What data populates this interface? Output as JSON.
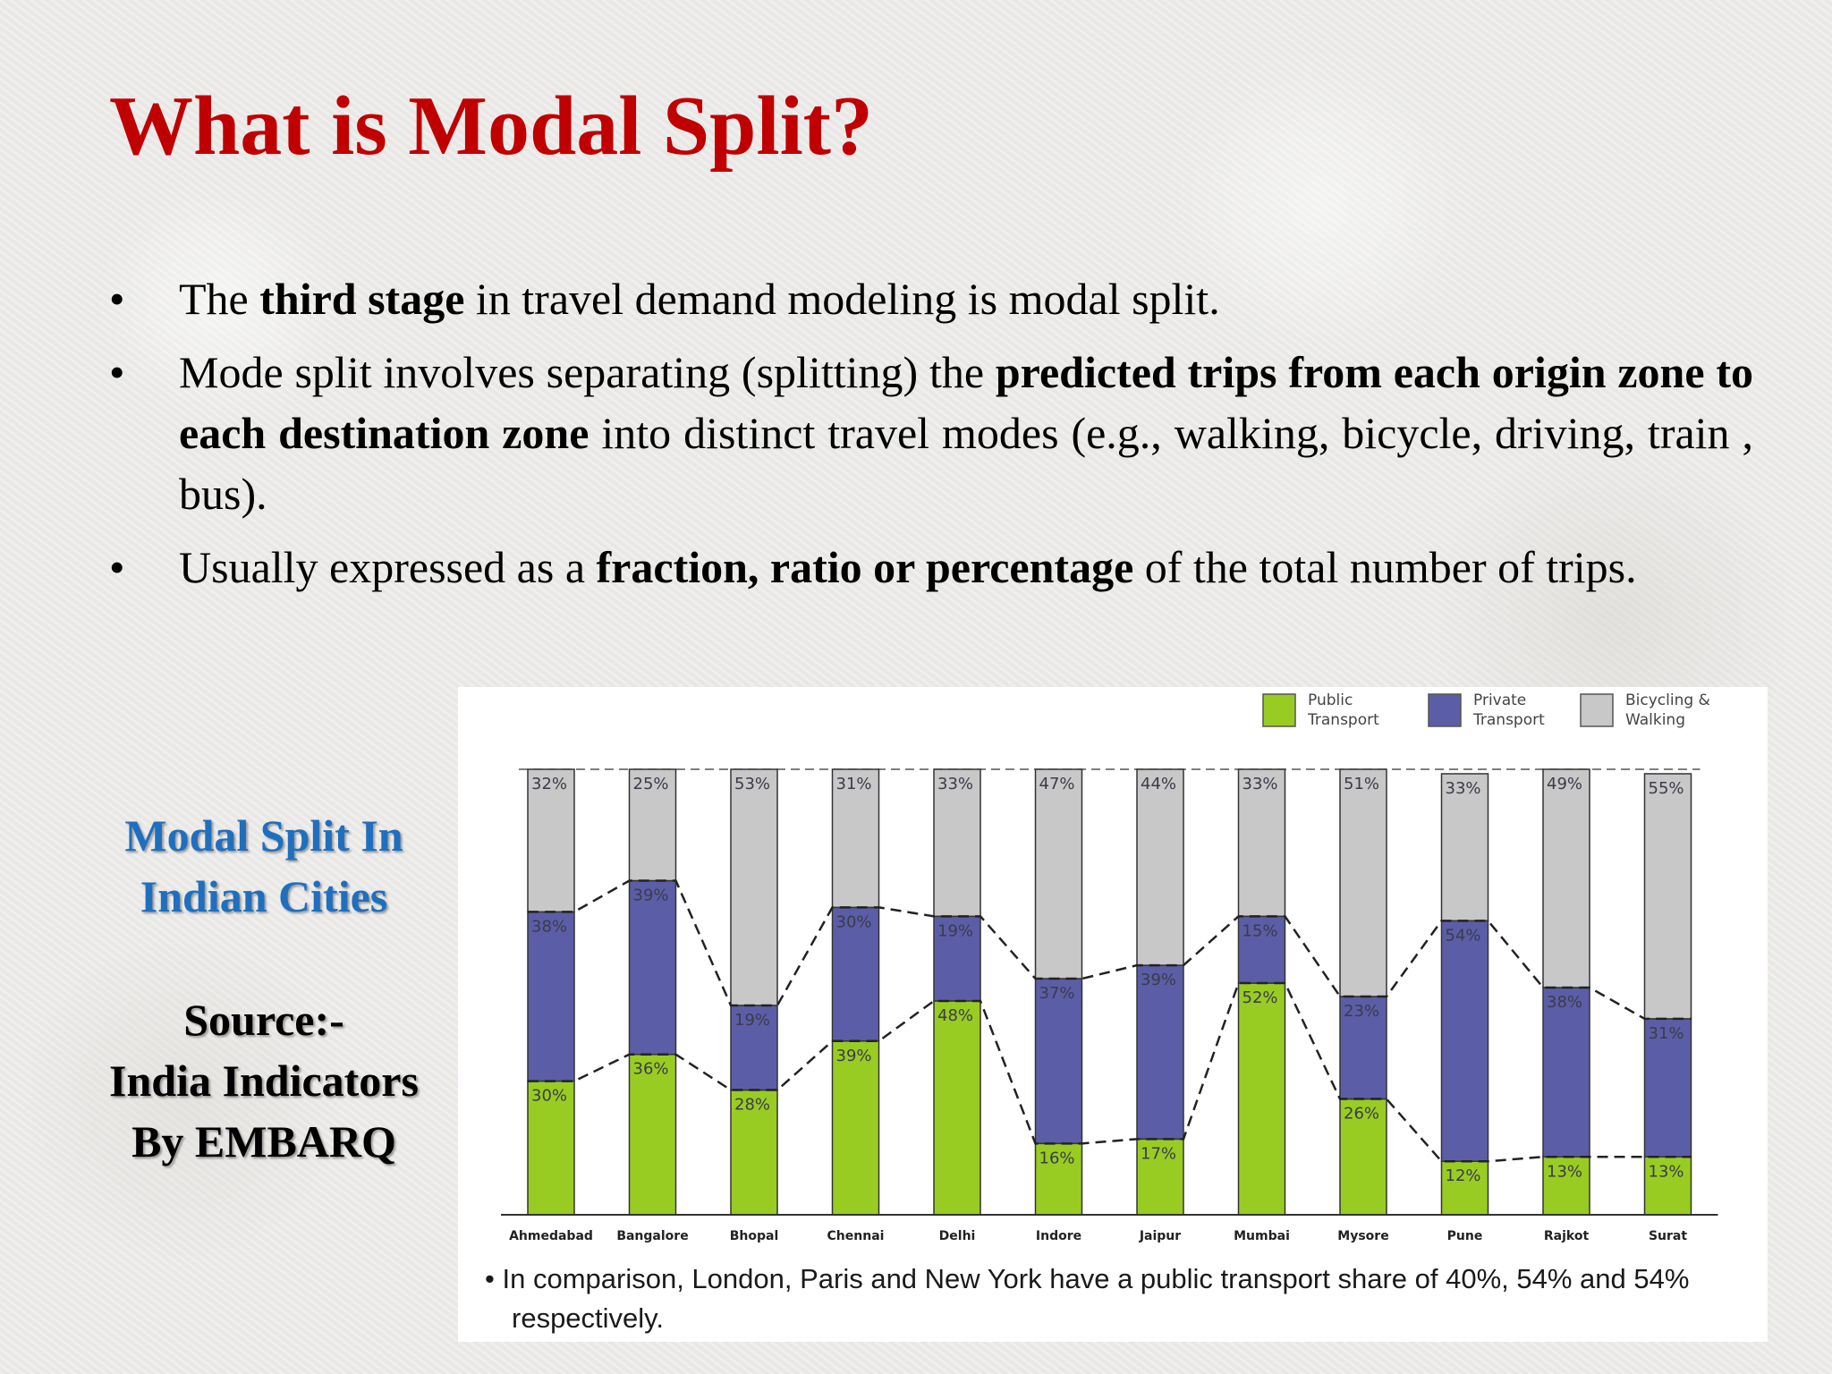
{
  "slide": {
    "title": "What is Modal Split?",
    "bullets": [
      {
        "segments": [
          {
            "text": "The ",
            "bold": false
          },
          {
            "text": "third stage",
            "bold": true
          },
          {
            "text": " in travel demand modeling is modal split.",
            "bold": false
          }
        ]
      },
      {
        "segments": [
          {
            "text": "Mode split involves separating (splitting) the ",
            "bold": false
          },
          {
            "text": "predicted trips from each origin zone to each destination zone",
            "bold": true
          },
          {
            "text": " into distinct travel modes (e.g., walking, bicycle, driving, train , bus).",
            "bold": false
          }
        ]
      },
      {
        "segments": [
          {
            "text": "Usually expressed as a ",
            "bold": false
          },
          {
            "text": "fraction, ratio or percentage",
            "bold": true
          },
          {
            "text": " of the total number of trips.",
            "bold": false
          }
        ]
      }
    ],
    "bullet_symbol": "•"
  },
  "caption": {
    "title_line1": "Modal Split In",
    "title_line2": "Indian Cities",
    "source_line1": "Source:-",
    "source_line2": "India Indicators",
    "source_line3": "By EMBARQ"
  },
  "colors": {
    "title": "#c00000",
    "caption_title": "#1f6fbf",
    "public": "#99cc22",
    "private": "#5b5ea6",
    "walk": "#c8c8c8"
  },
  "chart_data": {
    "type": "bar",
    "stacked": true,
    "categories": [
      "Ahmedabad",
      "Bangalore",
      "Bhopal",
      "Chennai",
      "Delhi",
      "Indore",
      "Jaipur",
      "Mumbai",
      "Mysore",
      "Pune",
      "Rajkot",
      "Surat"
    ],
    "series": [
      {
        "name": "Public Transport",
        "color": "#99cc22",
        "values": [
          30,
          36,
          28,
          39,
          48,
          16,
          17,
          52,
          26,
          12,
          13,
          13
        ]
      },
      {
        "name": "Private Transport",
        "color": "#5b5ea6",
        "values": [
          38,
          39,
          19,
          30,
          19,
          37,
          39,
          15,
          23,
          54,
          38,
          31
        ]
      },
      {
        "name": "Bicycling & Walking",
        "color": "#c8c8c8",
        "values": [
          32,
          25,
          53,
          31,
          33,
          47,
          44,
          33,
          51,
          33,
          49,
          55
        ]
      }
    ],
    "legend_labels": [
      [
        "Public",
        "Transport"
      ],
      [
        "Private",
        "Transport"
      ],
      [
        "Bicycling &",
        "Walking"
      ]
    ],
    "legend_position": "top-right",
    "value_suffix": "%",
    "ylim": [
      0,
      100
    ],
    "footnote": "In comparison, London, Paris and New York have a public transport share of 40%, 54% and 54% respectively.",
    "footnote_bullet": "•"
  }
}
